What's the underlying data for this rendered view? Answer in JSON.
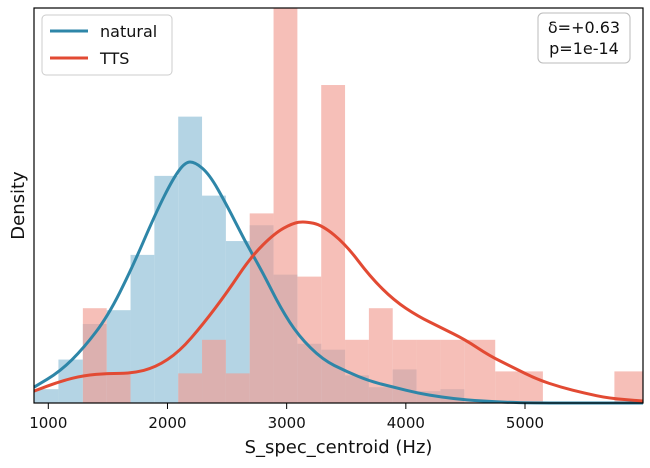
{
  "chart_data": {
    "type": "histogram",
    "xlabel": "S_spec_centroid (Hz)",
    "ylabel": "Density",
    "xlim": [
      880,
      5990
    ],
    "ylim": [
      0,
      1
    ],
    "xticks": [
      1000,
      2000,
      3000,
      4000,
      5000
    ],
    "legend_placement": "top-left",
    "annotation": {
      "line1": "δ=+0.63",
      "line2": "p=1e-14"
    },
    "series": [
      {
        "name": "natural",
        "line_color": "#2e86a8",
        "fill_color": "#a7cddf",
        "bins": [
          {
            "x0": 880,
            "x1": 1085,
            "h": 0.035
          },
          {
            "x0": 1085,
            "x1": 1290,
            "h": 0.11
          },
          {
            "x0": 1290,
            "x1": 1490,
            "h": 0.2
          },
          {
            "x0": 1490,
            "x1": 1690,
            "h": 0.235
          },
          {
            "x0": 1690,
            "x1": 1890,
            "h": 0.375
          },
          {
            "x0": 1890,
            "x1": 2090,
            "h": 0.575
          },
          {
            "x0": 2090,
            "x1": 2290,
            "h": 0.725
          },
          {
            "x0": 2290,
            "x1": 2490,
            "h": 0.525
          },
          {
            "x0": 2490,
            "x1": 2690,
            "h": 0.41
          },
          {
            "x0": 2690,
            "x1": 2890,
            "h": 0.45
          },
          {
            "x0": 2890,
            "x1": 3090,
            "h": 0.325
          },
          {
            "x0": 3090,
            "x1": 3290,
            "h": 0.15
          },
          {
            "x0": 3290,
            "x1": 3490,
            "h": 0.135
          },
          {
            "x0": 3490,
            "x1": 3690,
            "h": 0.07
          },
          {
            "x0": 3690,
            "x1": 3890,
            "h": 0.04
          },
          {
            "x0": 3890,
            "x1": 4090,
            "h": 0.085
          },
          {
            "x0": 4090,
            "x1": 4290,
            "h": 0.03
          },
          {
            "x0": 4290,
            "x1": 4490,
            "h": 0.035
          }
        ],
        "kde": [
          [
            880,
            0.04
          ],
          [
            1100,
            0.08
          ],
          [
            1300,
            0.14
          ],
          [
            1500,
            0.22
          ],
          [
            1700,
            0.34
          ],
          [
            1900,
            0.48
          ],
          [
            2050,
            0.57
          ],
          [
            2150,
            0.61
          ],
          [
            2230,
            0.61
          ],
          [
            2350,
            0.58
          ],
          [
            2500,
            0.5
          ],
          [
            2650,
            0.41
          ],
          [
            2800,
            0.33
          ],
          [
            2950,
            0.24
          ],
          [
            3100,
            0.17
          ],
          [
            3300,
            0.11
          ],
          [
            3500,
            0.08
          ],
          [
            3700,
            0.055
          ],
          [
            3900,
            0.04
          ],
          [
            4100,
            0.025
          ],
          [
            4300,
            0.015
          ],
          [
            4500,
            0.008
          ],
          [
            4800,
            0.002
          ],
          [
            5100,
            0.0
          ],
          [
            5990,
            0.0
          ]
        ]
      },
      {
        "name": "TTS",
        "line_color": "#e24a33",
        "fill_color": "#f19d92",
        "bins": [
          {
            "x0": 1290,
            "x1": 1490,
            "h": 0.24
          },
          {
            "x0": 1490,
            "x1": 1690,
            "h": 0.075
          },
          {
            "x0": 2090,
            "x1": 2290,
            "h": 0.075
          },
          {
            "x0": 2290,
            "x1": 2490,
            "h": 0.16
          },
          {
            "x0": 2490,
            "x1": 2690,
            "h": 0.075
          },
          {
            "x0": 2690,
            "x1": 2890,
            "h": 0.48
          },
          {
            "x0": 2890,
            "x1": 3090,
            "h": 1.045
          },
          {
            "x0": 3090,
            "x1": 3290,
            "h": 0.32
          },
          {
            "x0": 3290,
            "x1": 3490,
            "h": 0.805
          },
          {
            "x0": 3490,
            "x1": 3690,
            "h": 0.16
          },
          {
            "x0": 3690,
            "x1": 3890,
            "h": 0.24
          },
          {
            "x0": 3890,
            "x1": 4090,
            "h": 0.16
          },
          {
            "x0": 4090,
            "x1": 4290,
            "h": 0.16
          },
          {
            "x0": 4290,
            "x1": 4490,
            "h": 0.16
          },
          {
            "x0": 4490,
            "x1": 4750,
            "h": 0.16
          },
          {
            "x0": 4750,
            "x1": 4950,
            "h": 0.08
          },
          {
            "x0": 4950,
            "x1": 5150,
            "h": 0.08
          },
          {
            "x0": 5750,
            "x1": 5990,
            "h": 0.08
          }
        ],
        "kde": [
          [
            880,
            0.03
          ],
          [
            1100,
            0.055
          ],
          [
            1300,
            0.07
          ],
          [
            1500,
            0.075
          ],
          [
            1700,
            0.075
          ],
          [
            1900,
            0.09
          ],
          [
            2100,
            0.13
          ],
          [
            2300,
            0.2
          ],
          [
            2500,
            0.28
          ],
          [
            2700,
            0.37
          ],
          [
            2900,
            0.43
          ],
          [
            3050,
            0.455
          ],
          [
            3150,
            0.46
          ],
          [
            3300,
            0.45
          ],
          [
            3500,
            0.4
          ],
          [
            3700,
            0.32
          ],
          [
            3900,
            0.26
          ],
          [
            4100,
            0.22
          ],
          [
            4300,
            0.19
          ],
          [
            4500,
            0.16
          ],
          [
            4700,
            0.12
          ],
          [
            4900,
            0.09
          ],
          [
            5100,
            0.06
          ],
          [
            5300,
            0.04
          ],
          [
            5500,
            0.025
          ],
          [
            5700,
            0.012
          ],
          [
            5990,
            0.005
          ]
        ]
      }
    ]
  }
}
